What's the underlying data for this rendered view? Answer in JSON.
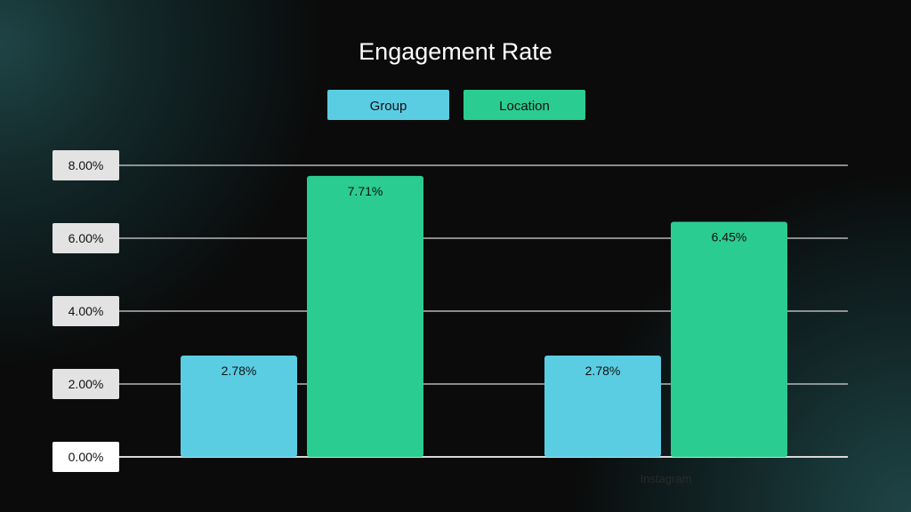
{
  "chart_data": {
    "type": "bar",
    "title": "Engagement Rate",
    "xlabel": "",
    "ylabel": "",
    "categories": [
      "",
      "Instagram"
    ],
    "series": [
      {
        "name": "Group",
        "color": "#5bcde3",
        "values": [
          2.78,
          2.78
        ],
        "labels": [
          "2.78%",
          "2.78%"
        ]
      },
      {
        "name": "Location",
        "color": "#2bcc91",
        "values": [
          7.71,
          6.45
        ],
        "labels": [
          "7.71%",
          "6.45%"
        ]
      }
    ],
    "ylim": [
      0,
      8
    ],
    "yticks": [
      0,
      2,
      4,
      6,
      8
    ],
    "ytick_labels": [
      "0.00%",
      "2.00%",
      "4.00%",
      "6.00%",
      "8.00%"
    ],
    "grid": true,
    "legend_position": "top-center"
  },
  "colors": {
    "background": "#0b0b0b",
    "gridline": "#d8d8d8",
    "tick_box": "#e3e3e3",
    "zero_tick_box": "#ffffff"
  }
}
